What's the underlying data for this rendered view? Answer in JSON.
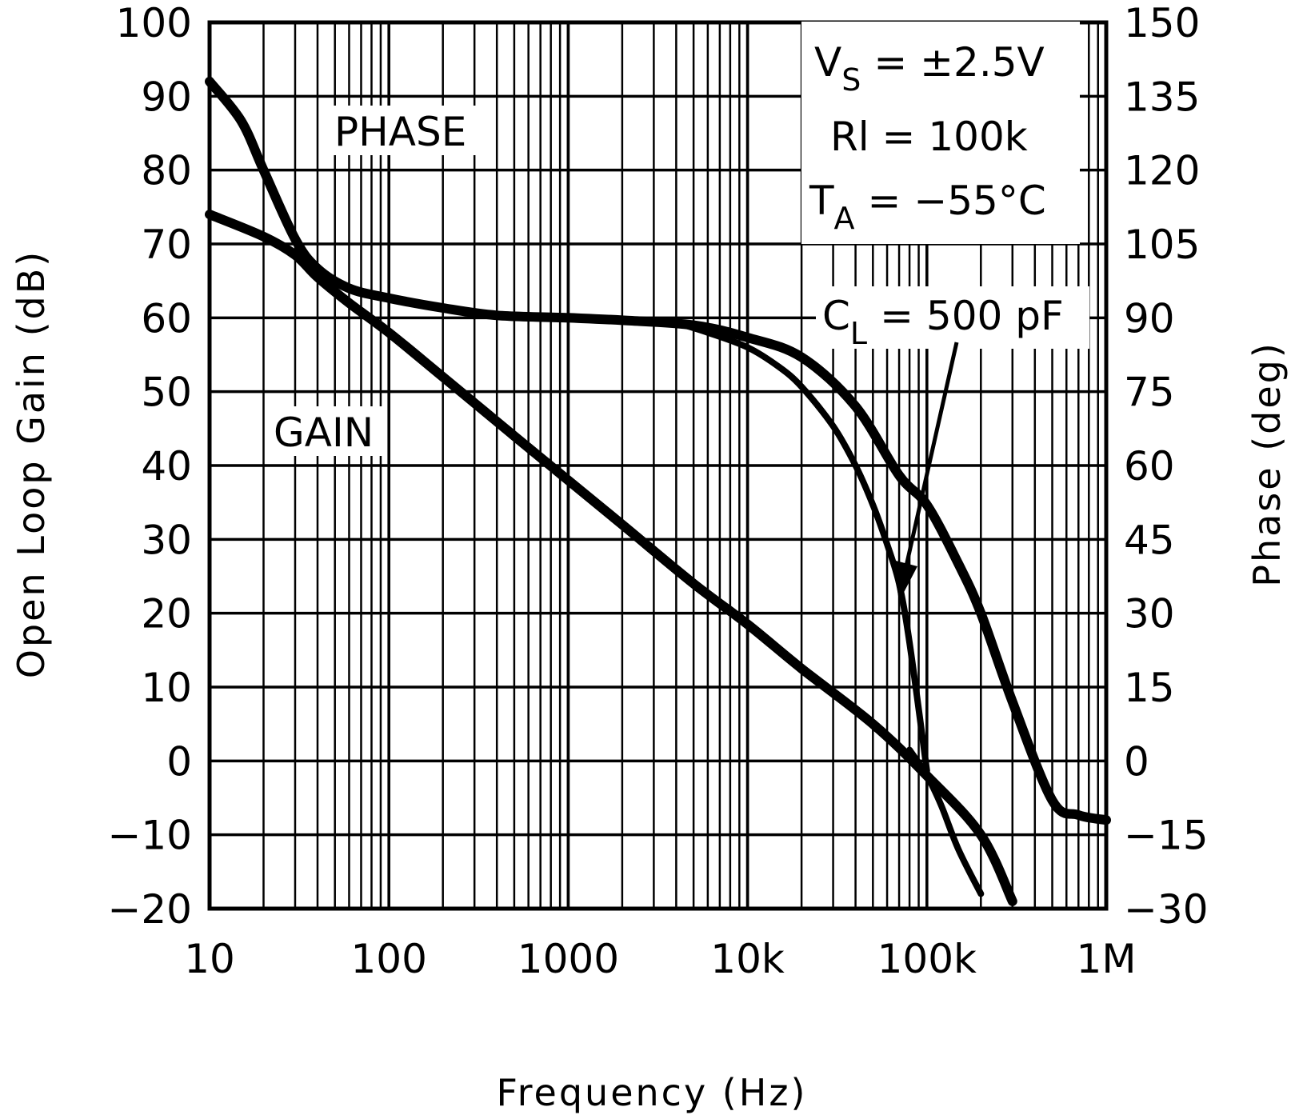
{
  "chart_data": {
    "type": "line",
    "title": "",
    "xlabel": "Frequency (Hz)",
    "ylabel": "Open Loop Gain (dB)",
    "y2label": "Phase (deg)",
    "xscale": "log",
    "xlim": [
      10,
      1000000
    ],
    "ylim": [
      -20,
      100
    ],
    "y2lim": [
      -30,
      150
    ],
    "grid": true,
    "x_tick_labels": [
      "10",
      "100",
      "1000",
      "10k",
      "100k",
      "1M"
    ],
    "y_tick_labels": [
      "100",
      "90",
      "80",
      "70",
      "60",
      "50",
      "40",
      "30",
      "20",
      "10",
      "0",
      "-10",
      "-20"
    ],
    "y2_tick_labels": [
      "150",
      "135",
      "120",
      "105",
      "90",
      "75",
      "60",
      "45",
      "30",
      "15",
      "0",
      "-15",
      "-30"
    ],
    "series": [
      {
        "name": "PHASE",
        "axis": "right",
        "x": [
          10,
          15,
          20,
          30,
          40,
          60,
          100,
          200,
          400,
          1000,
          2000,
          5000,
          10000,
          20000,
          40000,
          70000,
          100000,
          150000,
          200000,
          300000,
          500000,
          700000,
          1000000
        ],
        "y": [
          138,
          130,
          120,
          106,
          100,
          96,
          94,
          92,
          90.5,
          90,
          89.5,
          88.5,
          86,
          82,
          72,
          58,
          52,
          40,
          30,
          12,
          -8,
          -11,
          -12
        ]
      },
      {
        "name": "GAIN",
        "axis": "left",
        "x": [
          10,
          20,
          30,
          40,
          60,
          100,
          200,
          500,
          1000,
          2000,
          5000,
          10000,
          20000,
          50000,
          100000,
          200000,
          300000
        ],
        "y": [
          74,
          71,
          68.5,
          65.5,
          62,
          58,
          52,
          44,
          38,
          32,
          24,
          18.5,
          12.5,
          5,
          -2,
          -10,
          -19
        ]
      },
      {
        "name": "C_L = 500 pF PHASE",
        "axis": "right",
        "x": [
          4000,
          6000,
          10000,
          15000,
          20000,
          30000,
          40000,
          50000,
          60000,
          70000,
          80000,
          100000
        ],
        "y": [
          89,
          87,
          84,
          80,
          76,
          68,
          60,
          52,
          44,
          36,
          24,
          -2
        ]
      },
      {
        "name": "C_L = 500 pF GAIN",
        "axis": "left",
        "x": [
          80000,
          100000,
          120000,
          150000,
          200000
        ],
        "y": [
          1.5,
          -2,
          -6,
          -12,
          -18
        ]
      }
    ],
    "annotations": {
      "phase_label": "PHASE",
      "gain_label": "GAIN",
      "cl_label": "C",
      "cl_sub": "L",
      "cl_value": "= 500 pF",
      "vs_label": "V",
      "vs_sub": "S",
      "vs_value": "= ±2.5V",
      "rl_text": "Rl = 100k",
      "ta_label": "T",
      "ta_sub": "A",
      "ta_value": "= −55°C"
    }
  }
}
